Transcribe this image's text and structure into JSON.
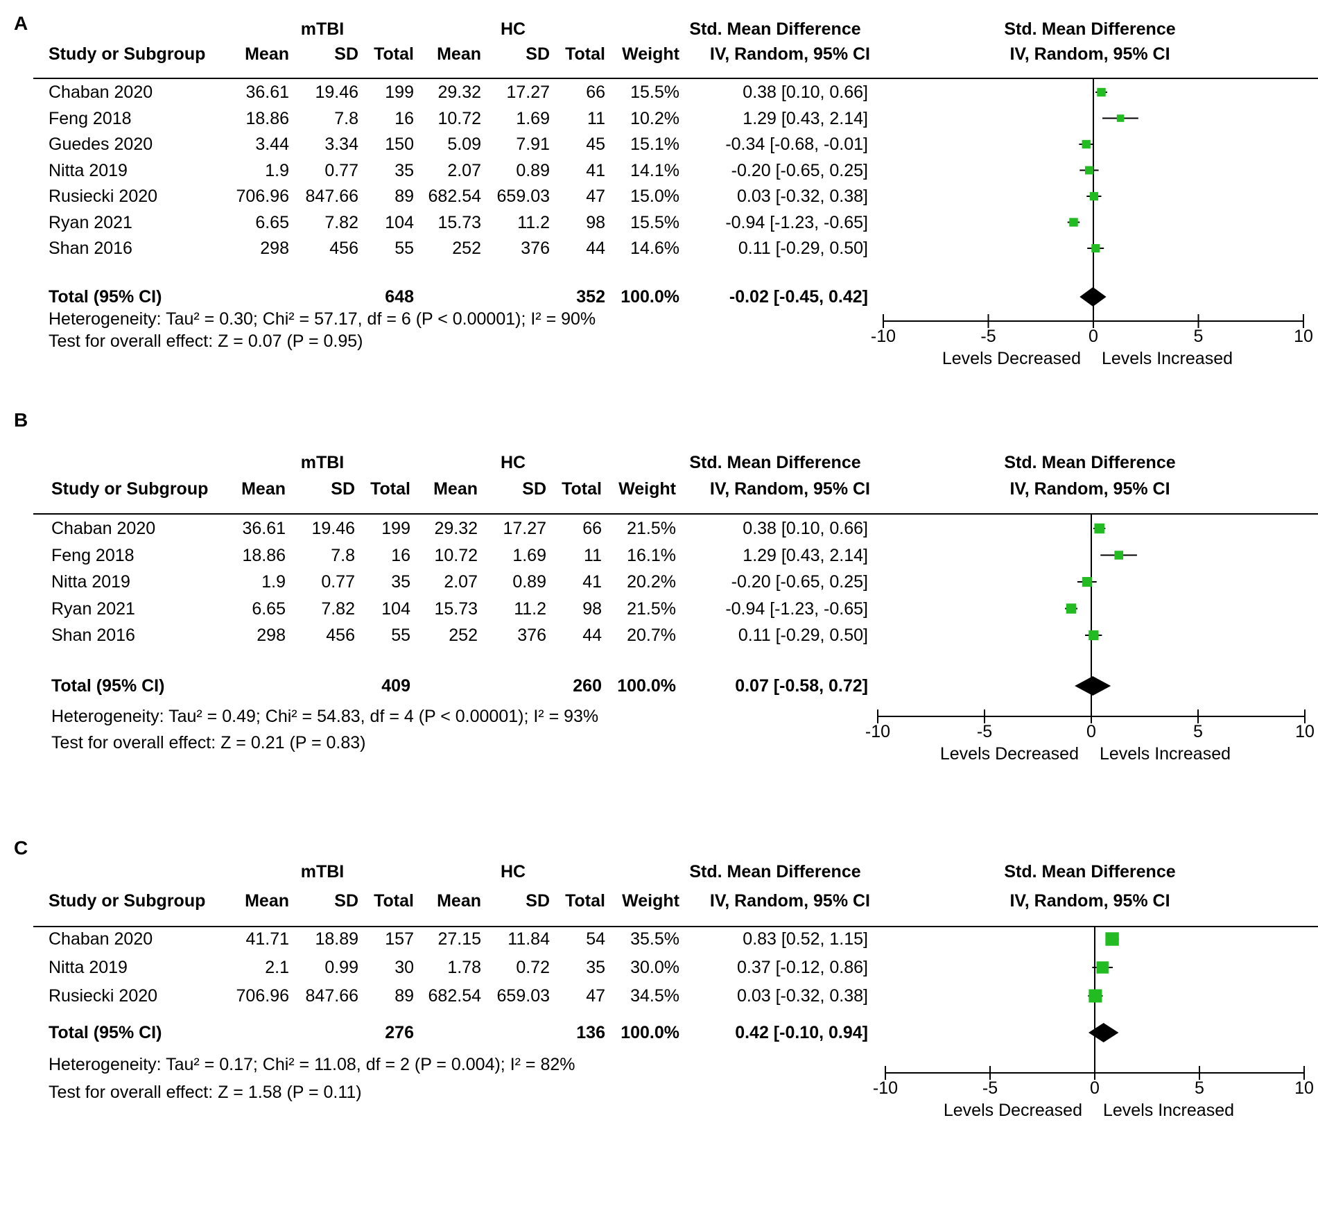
{
  "chart_data": [
    {
      "type": "forest",
      "panel": "A",
      "group1": "mTBI",
      "group2": "HC",
      "columns": [
        "Study or Subgroup",
        "Mean",
        "SD",
        "Total",
        "Mean",
        "SD",
        "Total",
        "Weight"
      ],
      "effect_header": [
        "Std. Mean Difference",
        "IV, Random, 95% CI"
      ],
      "studies": [
        {
          "name": "Chaban 2020",
          "m1": "36.61",
          "sd1": "19.46",
          "n1": "199",
          "m2": "29.32",
          "sd2": "17.27",
          "n2": "66",
          "weight": "15.5%",
          "ci_text": "0.38 [0.10, 0.66]",
          "est": 0.38,
          "lo": 0.1,
          "hi": 0.66
        },
        {
          "name": "Feng 2018",
          "m1": "18.86",
          "sd1": "7.8",
          "n1": "16",
          "m2": "10.72",
          "sd2": "1.69",
          "n2": "11",
          "weight": "10.2%",
          "ci_text": "1.29 [0.43, 2.14]",
          "est": 1.29,
          "lo": 0.43,
          "hi": 2.14
        },
        {
          "name": "Guedes 2020",
          "m1": "3.44",
          "sd1": "3.34",
          "n1": "150",
          "m2": "5.09",
          "sd2": "7.91",
          "n2": "45",
          "weight": "15.1%",
          "ci_text": "-0.34 [-0.68, -0.01]",
          "est": -0.34,
          "lo": -0.68,
          "hi": -0.01
        },
        {
          "name": "Nitta 2019",
          "m1": "1.9",
          "sd1": "0.77",
          "n1": "35",
          "m2": "2.07",
          "sd2": "0.89",
          "n2": "41",
          "weight": "14.1%",
          "ci_text": "-0.20 [-0.65, 0.25]",
          "est": -0.2,
          "lo": -0.65,
          "hi": 0.25
        },
        {
          "name": "Rusiecki 2020",
          "m1": "706.96",
          "sd1": "847.66",
          "n1": "89",
          "m2": "682.54",
          "sd2": "659.03",
          "n2": "47",
          "weight": "15.0%",
          "ci_text": "0.03 [-0.32, 0.38]",
          "est": 0.03,
          "lo": -0.32,
          "hi": 0.38
        },
        {
          "name": "Ryan 2021",
          "m1": "6.65",
          "sd1": "7.82",
          "n1": "104",
          "m2": "15.73",
          "sd2": "11.2",
          "n2": "98",
          "weight": "15.5%",
          "ci_text": "-0.94 [-1.23, -0.65]",
          "est": -0.94,
          "lo": -1.23,
          "hi": -0.65
        },
        {
          "name": "Shan 2016",
          "m1": "298",
          "sd1": "456",
          "n1": "55",
          "m2": "252",
          "sd2": "376",
          "n2": "44",
          "weight": "14.6%",
          "ci_text": "0.11 [-0.29, 0.50]",
          "est": 0.11,
          "lo": -0.29,
          "hi": 0.5
        }
      ],
      "total": {
        "label": "Total (95% CI)",
        "n1": "648",
        "n2": "352",
        "weight": "100.0%",
        "ci_text": "-0.02 [-0.45, 0.42]",
        "est": -0.02,
        "lo": -0.45,
        "hi": 0.42
      },
      "heterogeneity": "Heterogeneity: Tau² = 0.30; Chi² = 57.17, df = 6 (P < 0.00001); I² = 90%",
      "overall_effect": "Test for overall effect: Z = 0.07 (P = 0.95)",
      "xlim": [
        -10,
        10
      ],
      "xticks": [
        "-10",
        "-5",
        "0",
        "5",
        "10"
      ],
      "xlabel_left": "Levels Decreased",
      "xlabel_right": "Levels Increased"
    },
    {
      "type": "forest",
      "panel": "B",
      "group1": "mTBI",
      "group2": "HC",
      "columns": [
        "Study or Subgroup",
        "Mean",
        "SD",
        "Total",
        "Mean",
        "SD",
        "Total",
        "Weight"
      ],
      "effect_header": [
        "Std. Mean Difference",
        "IV, Random, 95% CI"
      ],
      "studies": [
        {
          "name": "Chaban 2020",
          "m1": "36.61",
          "sd1": "19.46",
          "n1": "199",
          "m2": "29.32",
          "sd2": "17.27",
          "n2": "66",
          "weight": "21.5%",
          "ci_text": "0.38 [0.10, 0.66]",
          "est": 0.38,
          "lo": 0.1,
          "hi": 0.66
        },
        {
          "name": "Feng 2018",
          "m1": "18.86",
          "sd1": "7.8",
          "n1": "16",
          "m2": "10.72",
          "sd2": "1.69",
          "n2": "11",
          "weight": "16.1%",
          "ci_text": "1.29 [0.43, 2.14]",
          "est": 1.29,
          "lo": 0.43,
          "hi": 2.14
        },
        {
          "name": "Nitta 2019",
          "m1": "1.9",
          "sd1": "0.77",
          "n1": "35",
          "m2": "2.07",
          "sd2": "0.89",
          "n2": "41",
          "weight": "20.2%",
          "ci_text": "-0.20 [-0.65, 0.25]",
          "est": -0.2,
          "lo": -0.65,
          "hi": 0.25
        },
        {
          "name": "Ryan 2021",
          "m1": "6.65",
          "sd1": "7.82",
          "n1": "104",
          "m2": "15.73",
          "sd2": "11.2",
          "n2": "98",
          "weight": "21.5%",
          "ci_text": "-0.94 [-1.23, -0.65]",
          "est": -0.94,
          "lo": -1.23,
          "hi": -0.65
        },
        {
          "name": "Shan 2016",
          "m1": "298",
          "sd1": "456",
          "n1": "55",
          "m2": "252",
          "sd2": "376",
          "n2": "44",
          "weight": "20.7%",
          "ci_text": "0.11 [-0.29, 0.50]",
          "est": 0.11,
          "lo": -0.29,
          "hi": 0.5
        }
      ],
      "total": {
        "label": "Total (95% CI)",
        "n1": "409",
        "n2": "260",
        "weight": "100.0%",
        "ci_text": "0.07 [-0.58, 0.72]",
        "est": 0.07,
        "lo": -0.58,
        "hi": 0.72
      },
      "heterogeneity": "Heterogeneity: Tau² = 0.49; Chi² = 54.83, df = 4 (P < 0.00001); I² = 93%",
      "overall_effect": "Test for overall effect: Z = 0.21 (P = 0.83)",
      "xlim": [
        -10,
        10
      ],
      "xticks": [
        "-10",
        "-5",
        "0",
        "5",
        "10"
      ],
      "xlabel_left": "Levels Decreased",
      "xlabel_right": "Levels Increased"
    },
    {
      "type": "forest",
      "panel": "C",
      "group1": "mTBI",
      "group2": "HC",
      "columns": [
        "Study or Subgroup",
        "Mean",
        "SD",
        "Total",
        "Mean",
        "SD",
        "Total",
        "Weight"
      ],
      "effect_header": [
        "Std. Mean Difference",
        "IV, Random, 95% CI"
      ],
      "studies": [
        {
          "name": "Chaban 2020",
          "m1": "41.71",
          "sd1": "18.89",
          "n1": "157",
          "m2": "27.15",
          "sd2": "11.84",
          "n2": "54",
          "weight": "35.5%",
          "ci_text": "0.83 [0.52, 1.15]",
          "est": 0.83,
          "lo": 0.52,
          "hi": 1.15
        },
        {
          "name": "Nitta 2019",
          "m1": "2.1",
          "sd1": "0.99",
          "n1": "30",
          "m2": "1.78",
          "sd2": "0.72",
          "n2": "35",
          "weight": "30.0%",
          "ci_text": "0.37 [-0.12, 0.86]",
          "est": 0.37,
          "lo": -0.12,
          "hi": 0.86
        },
        {
          "name": "Rusiecki 2020",
          "m1": "706.96",
          "sd1": "847.66",
          "n1": "89",
          "m2": "682.54",
          "sd2": "659.03",
          "n2": "47",
          "weight": "34.5%",
          "ci_text": "0.03 [-0.32, 0.38]",
          "est": 0.03,
          "lo": -0.32,
          "hi": 0.38
        }
      ],
      "total": {
        "label": "Total (95% CI)",
        "n1": "276",
        "n2": "136",
        "weight": "100.0%",
        "ci_text": "0.42 [-0.10, 0.94]",
        "est": 0.42,
        "lo": -0.1,
        "hi": 0.94
      },
      "heterogeneity": "Heterogeneity: Tau² = 0.17; Chi² = 11.08, df = 2 (P = 0.004); I² = 82%",
      "overall_effect": "Test for overall effect: Z = 1.58 (P = 0.11)",
      "xlim": [
        -10,
        10
      ],
      "xticks": [
        "-10",
        "-5",
        "0",
        "5",
        "10"
      ],
      "xlabel_left": "Levels Decreased",
      "xlabel_right": "Levels Increased"
    }
  ],
  "colors": {
    "marker": "#22bb22",
    "diamond": "#000000",
    "axis": "#000000"
  }
}
